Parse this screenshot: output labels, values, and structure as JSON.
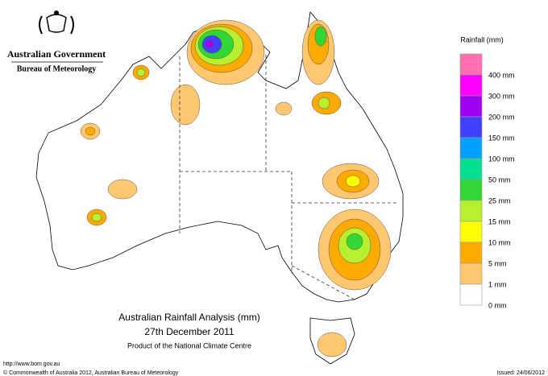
{
  "header": {
    "government": "Australian Government",
    "agency": "Bureau of Meteorology"
  },
  "legend": {
    "title": "Rainfall (mm)",
    "items": [
      {
        "label": "400 mm",
        "color": "#ff70b0"
      },
      {
        "label": "300 mm",
        "color": "#ff00ff"
      },
      {
        "label": "200 mm",
        "color": "#a000f0"
      },
      {
        "label": "150 mm",
        "color": "#4040ff"
      },
      {
        "label": "100 mm",
        "color": "#00a0ff"
      },
      {
        "label": "50 mm",
        "color": "#00e090"
      },
      {
        "label": "25 mm",
        "color": "#33d633"
      },
      {
        "label": "15 mm",
        "color": "#b8f030"
      },
      {
        "label": "10 mm",
        "color": "#ffff00"
      },
      {
        "label": "5 mm",
        "color": "#ffaa00"
      },
      {
        "label": "1 mm",
        "color": "#ffc870"
      },
      {
        "label": "0 mm",
        "color": "#ffffff"
      }
    ]
  },
  "title": {
    "line1": "Australian Rainfall Analysis (mm)",
    "line2": "27th December 2011",
    "line3": "Product of the National Climate Centre"
  },
  "footer": {
    "url": "http://www.bom.gov.au",
    "copyright": "© Commonwealth of Australia 2012, Australian Bureau of Meteorology",
    "issued": "Issued: 24/06/2012"
  }
}
